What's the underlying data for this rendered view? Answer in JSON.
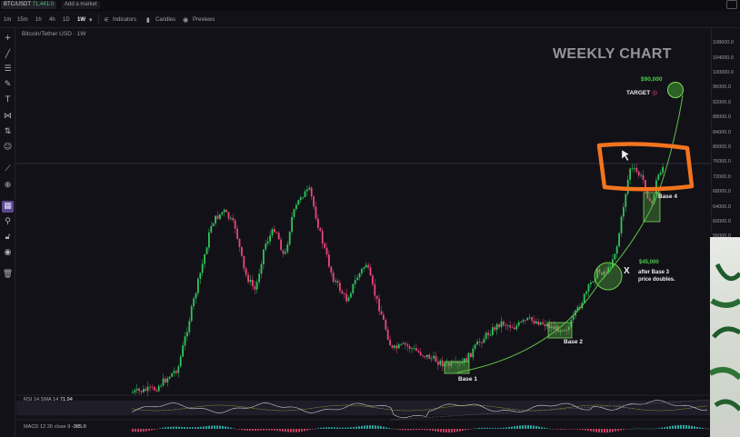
{
  "tabs": {
    "symbol": "BTC/USDT",
    "price": "71,441.0",
    "add_market": "Add a market"
  },
  "toolbar": {
    "timeframes": [
      "1m",
      "15m",
      "1h",
      "4h",
      "1D",
      "1W"
    ],
    "active_timeframe": "1W",
    "dropdown_icon": "chevron-down-icon",
    "indicators_label": "Indicators",
    "candles_label": "Candles",
    "previews_label": "Previews"
  },
  "chart": {
    "pair_label": "Bitcoin/Tether USD · 1W",
    "watermark": "WEEKLY CHART",
    "price_ticks": [
      "108000.0",
      "104000.0",
      "100000.0",
      "96000.0",
      "92000.0",
      "88000.0",
      "84000.0",
      "80000.0",
      "76000.0",
      "72000.0",
      "68000.0",
      "64000.0",
      "60000.0",
      "56000.0"
    ],
    "annotations": {
      "target_price": "$90,000",
      "target_label": "TARGET",
      "target_icon": "target-icon",
      "mid_price": "$45,000",
      "x_mark": "X",
      "after_line1": "after Base 3",
      "after_line2": "price doubles.",
      "base1": "Base 1",
      "base2": "Base 2",
      "base4": "Base 4"
    },
    "colors": {
      "up": "#30c45a",
      "down": "#e8477a",
      "curve": "#5dc24a",
      "highlight": "#f2741e",
      "base_box": "#7dd25a"
    }
  },
  "rsi": {
    "label": "RSI 14 SMA 14",
    "value": "71.94"
  },
  "macd": {
    "label": "MACD 12 26 close 9",
    "value": "-385.0"
  },
  "left_tools": [
    "crosshair-icon",
    "trend-line-icon",
    "horizontal-lines-icon",
    "brush-icon",
    "text-icon",
    "pattern-icon",
    "measure-icon",
    "emoji-icon",
    "ruler-icon",
    "zoom-icon",
    "fib-icon",
    "magnet-icon",
    "lock-icon",
    "eye-icon",
    "trash-icon"
  ]
}
